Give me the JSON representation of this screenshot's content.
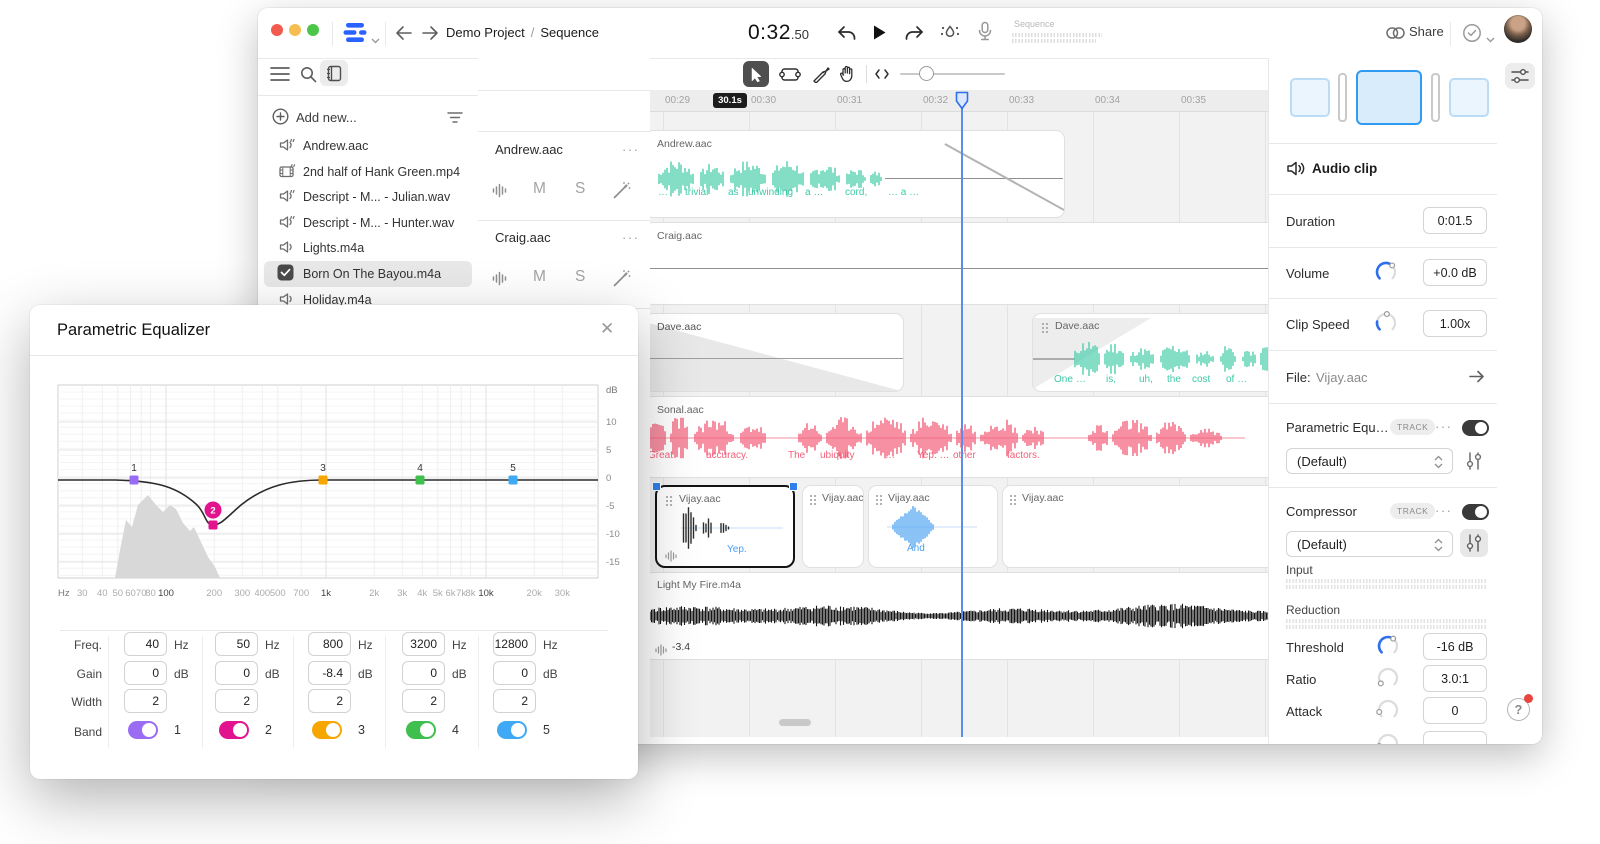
{
  "titlebar": {
    "project": "Demo Project",
    "separator": "/",
    "page": "Sequence",
    "timecode": "0:32",
    "timecode_fraction": ".50",
    "sequence_label": "Sequence",
    "share": "Share"
  },
  "sidebar": {
    "add_new": "Add new...",
    "files": [
      {
        "name": "Andrew.aac",
        "icon": "audio-quote"
      },
      {
        "name": "2nd half of Hank Green.mp4",
        "icon": "video-quote"
      },
      {
        "name": "Descript - M... - Julian.wav",
        "icon": "audio-quote"
      },
      {
        "name": "Descript - M... - Hunter.wav",
        "icon": "audio-quote"
      },
      {
        "name": "Lights.m4a",
        "icon": "audio"
      },
      {
        "name": "Born On The Bayou.m4a",
        "icon": "checkbox",
        "selected": true
      },
      {
        "name": "Holiday.m4a",
        "icon": "audio"
      }
    ]
  },
  "track_headers": {
    "mute": "M",
    "solo": "S",
    "tracks": [
      {
        "name": "Andrew.aac"
      },
      {
        "name": "Craig.aac"
      }
    ]
  },
  "timeline": {
    "ruler": [
      "00:29",
      "00:30",
      "00:31",
      "00:32",
      "00:33",
      "00:34",
      "00:35"
    ],
    "badge": "30.1s",
    "clips": {
      "andrew": {
        "label": "Andrew.aac",
        "words": [
          "…",
          "trivial",
          "as",
          "unwinding",
          "a …",
          "cord,",
          "… a …"
        ]
      },
      "craig": {
        "label": "Craig.aac"
      },
      "dave_left": {
        "label": "Dave.aac"
      },
      "dave_right": {
        "label": "Dave.aac",
        "words": [
          "One",
          "…",
          "is,",
          "uh,",
          "the",
          "cost",
          "of …"
        ]
      },
      "sonal": {
        "label": "Sonal.aac",
        "words": [
          "Great",
          "accuracy.",
          "The",
          "ubiquity",
          "…",
          "Yep. …",
          "other",
          "factors."
        ]
      },
      "vijay1": {
        "label": "Vijay.aac",
        "word": "Yep."
      },
      "vijay2": {
        "label": "Vijay.aac"
      },
      "vijay3": {
        "label": "Vijay.aac",
        "word": "And"
      },
      "vijay4": {
        "label": "Vijay.aac"
      },
      "light": {
        "label": "Light My Fire.m4a",
        "gain": "-3.4"
      }
    }
  },
  "inspector": {
    "audio_clip_title": "Audio clip",
    "duration_label": "Duration",
    "duration_value": "0:01.5",
    "volume_label": "Volume",
    "volume_value": "+0.0 dB",
    "speed_label": "Clip Speed",
    "speed_value": "1.00x",
    "file_label": "File:",
    "file_value": "Vijay.aac",
    "eq_effect": {
      "name": "Parametric Equali...",
      "badge": "TRACK",
      "preset": "(Default)"
    },
    "comp_effect": {
      "name": "Compressor",
      "badge": "TRACK",
      "preset": "(Default)"
    },
    "input_label": "Input",
    "reduction_label": "Reduction",
    "threshold_label": "Threshold",
    "threshold_value": "-16 dB",
    "ratio_label": "Ratio",
    "ratio_value": "3.0:1",
    "attack_label": "Attack",
    "attack_value": "0"
  },
  "right_rail": {
    "help": "?"
  },
  "eq_dialog": {
    "title": "Parametric Equalizer",
    "close": "✕",
    "graph": {
      "db_axis_label": "dB",
      "db_ticks": [
        "10",
        "5",
        "0",
        "-5",
        "-10",
        "-15"
      ],
      "hz_axis_label": "Hz",
      "freq_ticks": [
        "30",
        "40",
        "50",
        "60",
        "70",
        "80",
        "100",
        "200",
        "300",
        "400",
        "500",
        "700",
        "1k",
        "2k",
        "3k",
        "4k",
        "5k",
        "6k",
        "7k",
        "8k",
        "10k",
        "20k",
        "30k"
      ]
    },
    "table_row_labels": [
      "Freq.",
      "Gain",
      "Width",
      "Band"
    ],
    "bands": [
      {
        "num": "1",
        "freq": "40",
        "freq_unit": "Hz",
        "gain": "0",
        "gain_unit": "dB",
        "width": "2",
        "color": "#9a6cf4"
      },
      {
        "num": "2",
        "freq": "50",
        "freq_unit": "Hz",
        "gain": "0",
        "gain_unit": "dB",
        "width": "2",
        "color": "#e3128e"
      },
      {
        "num": "3",
        "freq": "800",
        "freq_unit": "Hz",
        "gain": "-8.4",
        "gain_unit": "dB",
        "width": "2",
        "color": "#f7a600"
      },
      {
        "num": "4",
        "freq": "3200",
        "freq_unit": "Hz",
        "gain": "0",
        "gain_unit": "dB",
        "width": "2",
        "color": "#3fbf4e"
      },
      {
        "num": "5",
        "freq": "12800",
        "freq_unit": "Hz",
        "gain": "0",
        "gain_unit": "dB",
        "width": "2",
        "color": "#3fa9f5"
      }
    ]
  }
}
